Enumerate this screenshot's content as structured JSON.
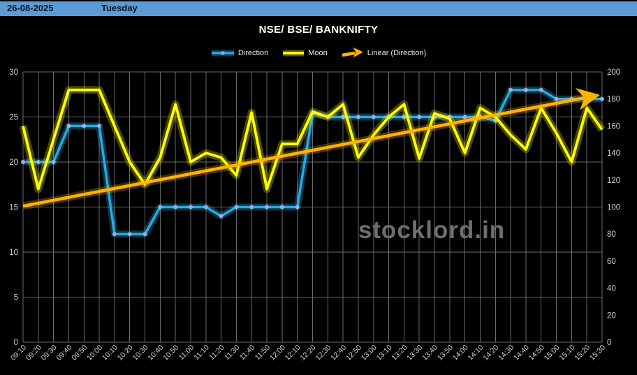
{
  "header": {
    "date": "26-08-2025",
    "day": "Tuesday"
  },
  "title": "NSE/ BSE/ BANKNIFTY",
  "watermark": "stocklord.in",
  "legend": [
    {
      "label": "Direction",
      "swatch": "line-marker"
    },
    {
      "label": "Moon",
      "swatch": "line"
    },
    {
      "label": "Linear (Direction)",
      "swatch": "arrow"
    }
  ],
  "colors": {
    "header_bar": "#5b9bd5",
    "header_text": "#0e1520",
    "background": "#000000",
    "grid": "#6a6a6a",
    "axis_text": "#d2d2d2",
    "direction_line": "#29a9e2",
    "direction_marker": "#a2abdc",
    "moon_line": "#ffff00",
    "trend_line": "#ffb300",
    "watermark_text": "#6e6e6e"
  },
  "chart_data": {
    "type": "line",
    "title": "NSE/ BSE/ BANKNIFTY",
    "xlabel": "",
    "ylabel": "",
    "grid": true,
    "legend_position": "top",
    "xtick_rotation_deg": 45,
    "ylim_left": [
      0,
      30
    ],
    "ytick_step_left": 5,
    "ylim_right": [
      0,
      200
    ],
    "ytick_step_right": 20,
    "x_categories": [
      "09:10",
      "09:20",
      "09:30",
      "09:40",
      "09:50",
      "10:00",
      "10:10",
      "10:20",
      "10:30",
      "10:40",
      "10:50",
      "11:00",
      "11:10",
      "11:20",
      "11:30",
      "11:40",
      "11:50",
      "12:00",
      "12:10",
      "12:20",
      "12:30",
      "12:40",
      "12:50",
      "13:00",
      "13:10",
      "13:20",
      "13:30",
      "13:40",
      "13:50",
      "14:00",
      "14:10",
      "14:20",
      "14:30",
      "14:40",
      "14:50",
      "15:00",
      "15:10",
      "15:20",
      "15:30"
    ],
    "series": [
      {
        "name": "Direction",
        "axis": "left",
        "marker": "circle",
        "values": [
          20,
          20,
          20,
          24,
          24,
          24,
          12,
          12,
          12,
          15,
          15,
          15,
          15,
          14,
          15,
          15,
          15,
          15,
          15,
          25.4,
          25,
          25,
          25,
          25,
          25,
          25,
          25,
          25,
          25,
          25,
          25,
          24.6,
          28,
          28,
          28,
          27,
          27,
          27,
          27
        ]
      },
      {
        "name": "Moon",
        "axis": "left",
        "marker": "none",
        "values": [
          24,
          17,
          22.5,
          28,
          28,
          28,
          24,
          20,
          17.5,
          20.5,
          26.4,
          20,
          21,
          20.5,
          18.5,
          25.5,
          17,
          22,
          22,
          25.6,
          25,
          26.4,
          20.5,
          23,
          25,
          26.4,
          20.4,
          25.4,
          24.8,
          21,
          26,
          25,
          23,
          21.4,
          26,
          23.2,
          20,
          26,
          23.6
        ]
      },
      {
        "name": "Linear (Direction)",
        "axis": "left",
        "type": "trendline-arrow",
        "start_value": 15.1,
        "end_value": 27.5
      }
    ]
  }
}
